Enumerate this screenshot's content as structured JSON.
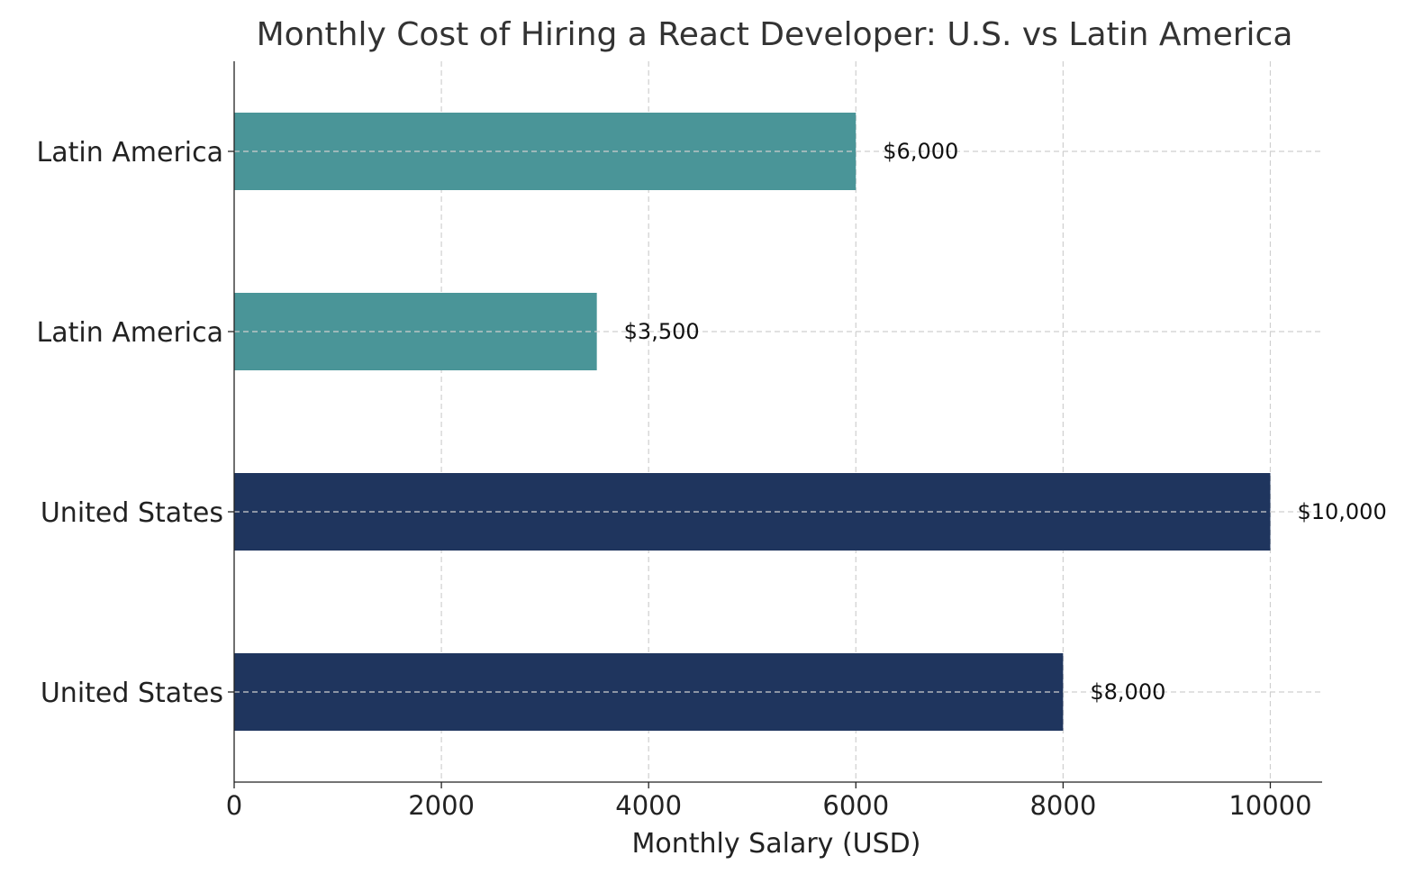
{
  "chart_data": {
    "type": "bar",
    "orientation": "horizontal",
    "title": "Monthly Cost of Hiring a React Developer: U.S. vs Latin America",
    "xlabel": "Monthly Salary (USD)",
    "ylabel": "",
    "xlim": [
      0,
      10500
    ],
    "xticks": [
      "0",
      "2000",
      "4000",
      "6000",
      "8000",
      "10000"
    ],
    "xtick_values": [
      0,
      2000,
      4000,
      6000,
      8000,
      10000
    ],
    "grid": true,
    "bars": [
      {
        "category": "United States",
        "value": 8000,
        "label": "$8,000",
        "color": "#1f355e"
      },
      {
        "category": "United States",
        "value": 10000,
        "label": "$10,000",
        "color": "#1f355e"
      },
      {
        "category": "Latin America",
        "value": 3500,
        "label": "$3,500",
        "color": "#4a9598"
      },
      {
        "category": "Latin America",
        "value": 6000,
        "label": "$6,000",
        "color": "#4a9598"
      }
    ]
  }
}
